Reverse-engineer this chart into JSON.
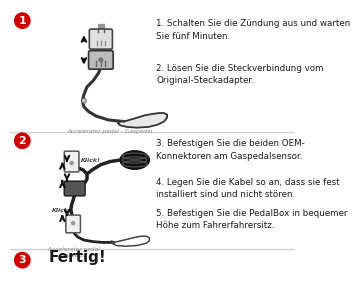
{
  "bg_color": "#ffffff",
  "divider_color": "#d0d0d0",
  "circle_color": "#cc0000",
  "circle_text_color": "#ffffff",
  "text_color": "#1a1a1a",
  "step1_text1": "1. Schalten Sie die Zündung aus und warten\nSie fünf Minuten.",
  "step1_text2": "2. Lösen Sie die Steckverbindung vom\nOriginal-Steckadapter.",
  "step2_text1": "3. Befestigen Sie die beiden OEM-\nKonnektoren am Gaspedalsensor.",
  "step2_text2": "4. Legen Sie die Kabel so an, dass sie fest\ninstalliert sind und nicht stören.",
  "step2_text3": "5. Befestigen Sie die PedalBox in bequemer\nHöhe zum Fahrerfahrersitz.",
  "step3_text": "Fertig!",
  "caption1": "Accelerator pedal - Gaspedal",
  "caption2": "- Accelerator pedal\n- Gaspedal"
}
